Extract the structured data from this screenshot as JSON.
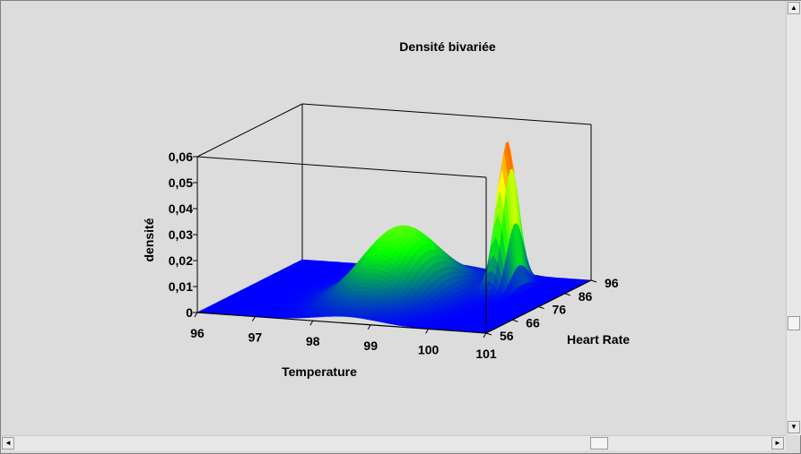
{
  "window": {
    "background": "#dcdcdc"
  },
  "chart_data": {
    "type": "surface3d",
    "title": "Densité bivariée",
    "xlabel": "Temperature",
    "ylabel": "Heart Rate",
    "zlabel": "densité",
    "x_ticks": [
      "96",
      "97",
      "98",
      "99",
      "100",
      "101"
    ],
    "y_ticks": [
      "56",
      "66",
      "76",
      "86",
      "96"
    ],
    "z_ticks": [
      "0",
      "0,01",
      "0,02",
      "0,03",
      "0,04",
      "0,05",
      "0,06"
    ],
    "xlim": [
      96,
      101
    ],
    "ylim": [
      56,
      96
    ],
    "zlim": [
      0,
      0.06
    ],
    "peaks": [
      {
        "name": "broad",
        "x": 98.6,
        "y": 76,
        "height": 0.027
      },
      {
        "name": "sharp",
        "x": 100.0,
        "y": 86,
        "height": 0.0565
      }
    ],
    "colormap": [
      "#0000ff",
      "#00ff00",
      "#ffff00",
      "#ff0000"
    ]
  },
  "scrollbars": {
    "up_arrow": "▲",
    "down_arrow": "▼",
    "left_arrow": "◄",
    "right_arrow": "►"
  }
}
